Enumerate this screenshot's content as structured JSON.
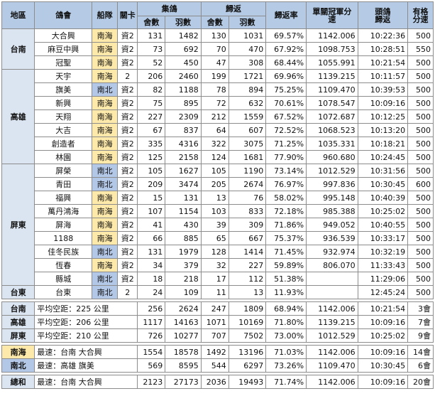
{
  "headers": {
    "region": "地區",
    "club": "鴿會",
    "zone": "船隊",
    "gate": "關卡",
    "collect": "集鴿",
    "collect_houses": "舍數",
    "collect_birds": "羽數",
    "returned": "歸返",
    "returned_houses": "舍數",
    "returned_birds": "羽數",
    "rate": "歸返率",
    "champion_speed": "單關冠軍分速",
    "first_return": "頭鴿歸返",
    "valid_speed": "有格分速"
  },
  "regions": [
    {
      "name": "台南",
      "rows": [
        {
          "club": "大合興",
          "zone": "南海",
          "gate": "資2",
          "ch": "131",
          "cb": "1482",
          "rh": "130",
          "rb": "1031",
          "rate": "69.57%",
          "speed": "1142.006",
          "time": "10:22:36",
          "valid": "500"
        },
        {
          "club": "麻豆中興",
          "zone": "南海",
          "gate": "資2",
          "ch": "73",
          "cb": "692",
          "rh": "70",
          "rb": "470",
          "rate": "67.92%",
          "speed": "1098.753",
          "time": "10:28:51",
          "valid": "550"
        },
        {
          "club": "冠聖",
          "zone": "南海",
          "gate": "資2",
          "ch": "52",
          "cb": "450",
          "rh": "47",
          "rb": "308",
          "rate": "68.44%",
          "speed": "1055.991",
          "time": "10:21:54",
          "valid": "500"
        }
      ]
    },
    {
      "name": "高雄",
      "rows": [
        {
          "club": "天宇",
          "zone": "南海",
          "gate": "2",
          "ch": "206",
          "cb": "2460",
          "rh": "199",
          "rb": "1721",
          "rate": "69.96%",
          "speed": "1139.215",
          "time": "10:11:57",
          "valid": "500"
        },
        {
          "club": "旗美",
          "zone": "南北",
          "gate": "資2",
          "ch": "82",
          "cb": "1188",
          "rh": "78",
          "rb": "894",
          "rate": "75.25%",
          "speed": "1109.470",
          "time": "10:39:53",
          "valid": "500"
        },
        {
          "club": "新興",
          "zone": "南海",
          "gate": "資2",
          "ch": "75",
          "cb": "895",
          "rh": "72",
          "rb": "632",
          "rate": "70.61%",
          "speed": "1078.547",
          "time": "10:09:16",
          "valid": "500"
        },
        {
          "club": "天翔",
          "zone": "南海",
          "gate": "資2",
          "ch": "227",
          "cb": "2309",
          "rh": "212",
          "rb": "1559",
          "rate": "67.52%",
          "speed": "1072.687",
          "time": "10:12:25",
          "valid": "500"
        },
        {
          "club": "大吉",
          "zone": "南海",
          "gate": "資2",
          "ch": "67",
          "cb": "837",
          "rh": "64",
          "rb": "607",
          "rate": "72.52%",
          "speed": "1068.523",
          "time": "10:13:20",
          "valid": "500"
        },
        {
          "club": "創造者",
          "zone": "南海",
          "gate": "資2",
          "ch": "335",
          "cb": "4316",
          "rh": "322",
          "rb": "3075",
          "rate": "71.25%",
          "speed": "1035.331",
          "time": "10:18:21",
          "valid": "500"
        },
        {
          "club": "林園",
          "zone": "南海",
          "gate": "資2",
          "ch": "125",
          "cb": "2158",
          "rh": "124",
          "rb": "1681",
          "rate": "77.90%",
          "speed": "960.680",
          "time": "10:24:45",
          "valid": "500"
        }
      ]
    },
    {
      "name": "屏東",
      "rows": [
        {
          "club": "屏榮",
          "zone": "南北",
          "gate": "資2",
          "ch": "105",
          "cb": "1627",
          "rh": "105",
          "rb": "1190",
          "rate": "73.14%",
          "speed": "1012.529",
          "time": "10:31:56",
          "valid": "500"
        },
        {
          "club": "青田",
          "zone": "南北",
          "gate": "資2",
          "ch": "209",
          "cb": "3474",
          "rh": "205",
          "rb": "2674",
          "rate": "76.97%",
          "speed": "997.836",
          "time": "10:30:45",
          "valid": "600"
        },
        {
          "club": "福興",
          "zone": "南海",
          "gate": "資2",
          "ch": "15",
          "cb": "131",
          "rh": "13",
          "rb": "76",
          "rate": "58.02%",
          "speed": "995.148",
          "time": "10:40:39",
          "valid": "500"
        },
        {
          "club": "萬丹鴻海",
          "zone": "南海",
          "gate": "資2",
          "ch": "107",
          "cb": "1154",
          "rh": "103",
          "rb": "833",
          "rate": "72.18%",
          "speed": "985.388",
          "time": "10:25:02",
          "valid": "500"
        },
        {
          "club": "屏海",
          "zone": "南海",
          "gate": "資2",
          "ch": "41",
          "cb": "430",
          "rh": "39",
          "rb": "309",
          "rate": "71.86%",
          "speed": "949.052",
          "time": "10:40:55",
          "valid": "500"
        },
        {
          "club": "1188",
          "zone": "南海",
          "gate": "資2",
          "ch": "66",
          "cb": "885",
          "rh": "65",
          "rb": "667",
          "rate": "75.37%",
          "speed": "936.539",
          "time": "10:33:17",
          "valid": "500"
        },
        {
          "club": "佳冬民族",
          "zone": "南北",
          "gate": "資2",
          "ch": "131",
          "cb": "1979",
          "rh": "128",
          "rb": "1414",
          "rate": "71.45%",
          "speed": "932.974",
          "time": "10:32:19",
          "valid": "500"
        },
        {
          "club": "恆春",
          "zone": "南海",
          "gate": "資2",
          "ch": "34",
          "cb": "379",
          "rh": "32",
          "rb": "227",
          "rate": "59.89%",
          "speed": "806.070",
          "time": "11:33:43",
          "valid": "500"
        },
        {
          "club": "縣城",
          "zone": "南北",
          "gate": "資2",
          "ch": "18",
          "cb": "218",
          "rh": "17",
          "rb": "112",
          "rate": "51.38%",
          "speed": "",
          "time": "11:29:06",
          "valid": "500"
        }
      ]
    },
    {
      "name": "台東",
      "rows": [
        {
          "club": "台東",
          "zone": "南北",
          "gate": "2",
          "ch": "24",
          "cb": "109",
          "rh": "11",
          "rb": "13",
          "rate": "11.93%",
          "speed": "",
          "time": "12:45:24",
          "valid": "500"
        }
      ]
    }
  ],
  "summary_region": [
    {
      "label": "台南",
      "note": "平均空距：225 公里",
      "ch": "256",
      "cb": "2624",
      "rh": "247",
      "rb": "1809",
      "rate": "68.94%",
      "speed": "1142.006",
      "time": "10:21:54",
      "valid": "3會"
    },
    {
      "label": "高雄",
      "note": "平均空距：206 公里",
      "ch": "1117",
      "cb": "14163",
      "rh": "1071",
      "rb": "10169",
      "rate": "71.80%",
      "speed": "1139.215",
      "time": "10:09:16",
      "valid": "7會"
    },
    {
      "label": "屏東",
      "note": "平均空距：210 公里",
      "ch": "726",
      "cb": "10277",
      "rh": "707",
      "rb": "7502",
      "rate": "73.00%",
      "speed": "1012.529",
      "time": "10:25:02",
      "valid": "9會"
    }
  ],
  "summary_zone": [
    {
      "label": "南海",
      "note": "最速：台南 大合興",
      "ch": "1554",
      "cb": "18578",
      "rh": "1492",
      "rb": "13196",
      "rate": "71.03%",
      "speed": "1142.006",
      "time": "10:09:16",
      "valid": "14會"
    },
    {
      "label": "南北",
      "note": "最速：高雄 旗美",
      "ch": "569",
      "cb": "8595",
      "rh": "544",
      "rb": "6297",
      "rate": "73.26%",
      "speed": "1109.470",
      "time": "10:30:45",
      "valid": "6會"
    }
  ],
  "total": {
    "label": "總和",
    "note": "最速：台南 大合興",
    "ch": "2123",
    "cb": "27173",
    "rh": "2036",
    "rb": "19493",
    "rate": "71.74%",
    "speed": "1142.006",
    "time": "10:09:16",
    "valid": "20會"
  },
  "colors": {
    "header_bg": "#b5cbe5",
    "region_bg": "#dbe5f1",
    "south_sea": "#fde9a9",
    "south_north": "#b3c7e6",
    "border": "#8c8c8c"
  }
}
